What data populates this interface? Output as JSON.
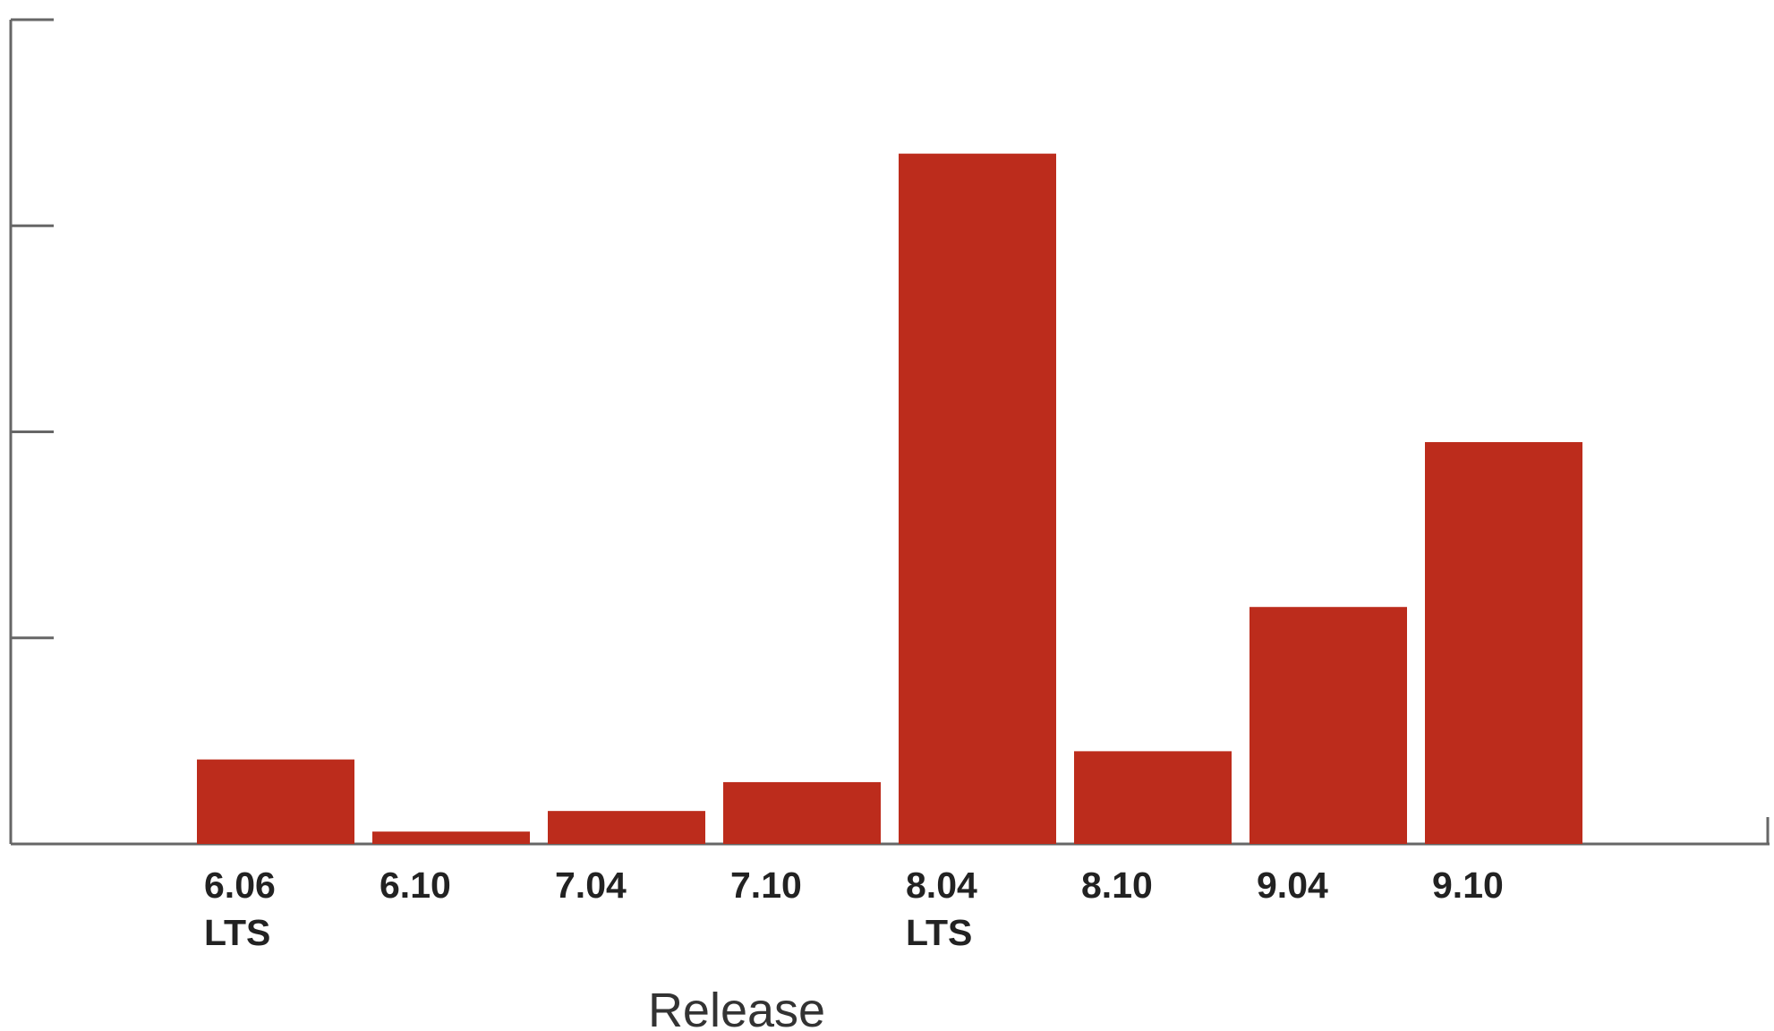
{
  "chart_data": {
    "type": "bar",
    "xlabel": "Release",
    "ylabel": "",
    "categories": [
      [
        "6.06",
        "LTS"
      ],
      [
        "6.10"
      ],
      [
        "7.04"
      ],
      [
        "7.10"
      ],
      [
        "8.04",
        "LTS"
      ],
      [
        "8.10"
      ],
      [
        "9.04"
      ],
      [
        "9.10"
      ]
    ],
    "values": [
      4.1,
      0.6,
      1.6,
      3.0,
      33.5,
      4.5,
      11.5,
      19.5
    ],
    "ylim": [
      0,
      40
    ],
    "yticks": [
      0,
      10,
      20,
      30,
      40
    ],
    "grid": false,
    "colors": {
      "bar": "#bc2c1c",
      "axis": "#666666"
    }
  }
}
